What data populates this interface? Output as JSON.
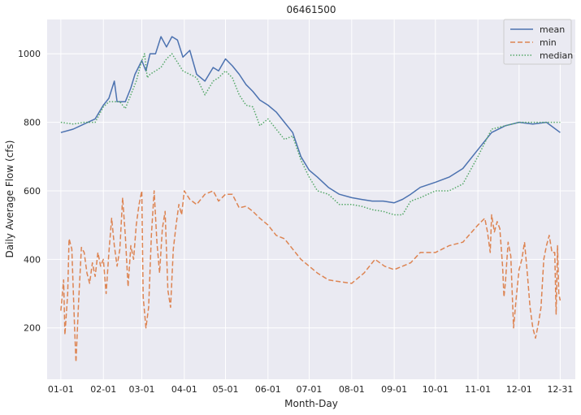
{
  "chart_data": {
    "type": "line",
    "title": "06461500",
    "xlabel": "Month-Day",
    "ylabel": "Daily Average Flow (cfs)",
    "x_tick_labels": [
      "01-01",
      "02-01",
      "03-01",
      "04-01",
      "05-01",
      "06-01",
      "07-01",
      "08-01",
      "09-01",
      "10-01",
      "11-01",
      "12-01",
      "12-31"
    ],
    "x_tick_days": [
      1,
      32,
      60,
      91,
      121,
      152,
      182,
      213,
      244,
      274,
      305,
      335,
      365
    ],
    "xlim": [
      -9,
      376
    ],
    "y_ticks": [
      200,
      400,
      600,
      800,
      1000
    ],
    "ylim": [
      50,
      1100
    ],
    "grid": true,
    "legend": "top-right",
    "background_color": "#eaeaf2",
    "series": [
      {
        "name": "mean",
        "style": "solid",
        "color": "#4c72b0",
        "points": [
          [
            1,
            770
          ],
          [
            10,
            780
          ],
          [
            18,
            795
          ],
          [
            26,
            810
          ],
          [
            32,
            850
          ],
          [
            36,
            870
          ],
          [
            40,
            920
          ],
          [
            42,
            860
          ],
          [
            48,
            860
          ],
          [
            52,
            900
          ],
          [
            55,
            940
          ],
          [
            60,
            980
          ],
          [
            63,
            950
          ],
          [
            66,
            1000
          ],
          [
            70,
            1000
          ],
          [
            74,
            1050
          ],
          [
            78,
            1020
          ],
          [
            82,
            1050
          ],
          [
            86,
            1040
          ],
          [
            90,
            990
          ],
          [
            95,
            1010
          ],
          [
            100,
            940
          ],
          [
            106,
            920
          ],
          [
            112,
            960
          ],
          [
            116,
            950
          ],
          [
            121,
            985
          ],
          [
            126,
            965
          ],
          [
            131,
            940
          ],
          [
            136,
            910
          ],
          [
            141,
            890
          ],
          [
            146,
            865
          ],
          [
            152,
            850
          ],
          [
            158,
            830
          ],
          [
            164,
            800
          ],
          [
            170,
            770
          ],
          [
            176,
            700
          ],
          [
            182,
            660
          ],
          [
            188,
            640
          ],
          [
            196,
            610
          ],
          [
            204,
            590
          ],
          [
            213,
            580
          ],
          [
            220,
            575
          ],
          [
            228,
            570
          ],
          [
            236,
            570
          ],
          [
            244,
            565
          ],
          [
            250,
            575
          ],
          [
            256,
            590
          ],
          [
            263,
            610
          ],
          [
            274,
            625
          ],
          [
            284,
            640
          ],
          [
            294,
            665
          ],
          [
            305,
            720
          ],
          [
            315,
            770
          ],
          [
            325,
            790
          ],
          [
            335,
            800
          ],
          [
            345,
            795
          ],
          [
            355,
            800
          ],
          [
            365,
            770
          ]
        ]
      },
      {
        "name": "min",
        "style": "dashed",
        "color": "#dd8452",
        "points": [
          [
            1,
            250
          ],
          [
            3,
            340
          ],
          [
            4,
            180
          ],
          [
            6,
            300
          ],
          [
            7,
            460
          ],
          [
            9,
            430
          ],
          [
            11,
            200
          ],
          [
            12,
            100
          ],
          [
            14,
            280
          ],
          [
            16,
            435
          ],
          [
            18,
            420
          ],
          [
            20,
            360
          ],
          [
            22,
            330
          ],
          [
            24,
            390
          ],
          [
            26,
            350
          ],
          [
            28,
            420
          ],
          [
            30,
            380
          ],
          [
            32,
            400
          ],
          [
            34,
            300
          ],
          [
            36,
            420
          ],
          [
            38,
            520
          ],
          [
            40,
            440
          ],
          [
            42,
            380
          ],
          [
            44,
            430
          ],
          [
            46,
            580
          ],
          [
            48,
            470
          ],
          [
            50,
            320
          ],
          [
            52,
            440
          ],
          [
            54,
            400
          ],
          [
            56,
            500
          ],
          [
            58,
            560
          ],
          [
            60,
            600
          ],
          [
            61,
            290
          ],
          [
            63,
            200
          ],
          [
            65,
            260
          ],
          [
            67,
            470
          ],
          [
            69,
            600
          ],
          [
            71,
            450
          ],
          [
            73,
            360
          ],
          [
            75,
            490
          ],
          [
            77,
            540
          ],
          [
            79,
            310
          ],
          [
            81,
            260
          ],
          [
            83,
            430
          ],
          [
            85,
            500
          ],
          [
            87,
            560
          ],
          [
            89,
            530
          ],
          [
            91,
            600
          ],
          [
            95,
            575
          ],
          [
            100,
            560
          ],
          [
            106,
            590
          ],
          [
            112,
            600
          ],
          [
            116,
            570
          ],
          [
            121,
            590
          ],
          [
            126,
            590
          ],
          [
            131,
            550
          ],
          [
            136,
            555
          ],
          [
            141,
            540
          ],
          [
            146,
            520
          ],
          [
            152,
            500
          ],
          [
            158,
            470
          ],
          [
            164,
            460
          ],
          [
            170,
            430
          ],
          [
            176,
            400
          ],
          [
            182,
            380
          ],
          [
            188,
            360
          ],
          [
            196,
            340
          ],
          [
            204,
            335
          ],
          [
            213,
            330
          ],
          [
            222,
            360
          ],
          [
            230,
            400
          ],
          [
            237,
            380
          ],
          [
            244,
            370
          ],
          [
            250,
            380
          ],
          [
            256,
            390
          ],
          [
            263,
            420
          ],
          [
            274,
            420
          ],
          [
            284,
            440
          ],
          [
            294,
            450
          ],
          [
            305,
            500
          ],
          [
            310,
            520
          ],
          [
            312,
            480
          ],
          [
            314,
            420
          ],
          [
            315,
            530
          ],
          [
            317,
            480
          ],
          [
            319,
            510
          ],
          [
            321,
            490
          ],
          [
            323,
            380
          ],
          [
            324,
            290
          ],
          [
            325,
            330
          ],
          [
            327,
            450
          ],
          [
            329,
            410
          ],
          [
            331,
            200
          ],
          [
            333,
            290
          ],
          [
            335,
            370
          ],
          [
            337,
            400
          ],
          [
            339,
            450
          ],
          [
            341,
            360
          ],
          [
            343,
            260
          ],
          [
            345,
            200
          ],
          [
            347,
            170
          ],
          [
            349,
            210
          ],
          [
            351,
            260
          ],
          [
            353,
            400
          ],
          [
            355,
            440
          ],
          [
            357,
            470
          ],
          [
            359,
            420
          ],
          [
            361,
            420
          ],
          [
            362,
            240
          ],
          [
            363,
            440
          ],
          [
            364,
            300
          ],
          [
            365,
            280
          ]
        ]
      },
      {
        "name": "median",
        "style": "dotted",
        "color": "#55a868",
        "points": [
          [
            1,
            800
          ],
          [
            10,
            795
          ],
          [
            18,
            800
          ],
          [
            26,
            800
          ],
          [
            32,
            845
          ],
          [
            36,
            860
          ],
          [
            40,
            860
          ],
          [
            44,
            860
          ],
          [
            48,
            840
          ],
          [
            52,
            880
          ],
          [
            56,
            920
          ],
          [
            60,
            980
          ],
          [
            62,
            1000
          ],
          [
            64,
            930
          ],
          [
            66,
            940
          ],
          [
            70,
            950
          ],
          [
            74,
            960
          ],
          [
            78,
            985
          ],
          [
            82,
            1000
          ],
          [
            86,
            975
          ],
          [
            90,
            950
          ],
          [
            95,
            940
          ],
          [
            100,
            930
          ],
          [
            106,
            880
          ],
          [
            112,
            920
          ],
          [
            116,
            930
          ],
          [
            121,
            950
          ],
          [
            126,
            930
          ],
          [
            131,
            880
          ],
          [
            136,
            850
          ],
          [
            141,
            845
          ],
          [
            146,
            790
          ],
          [
            152,
            810
          ],
          [
            158,
            780
          ],
          [
            164,
            750
          ],
          [
            170,
            760
          ],
          [
            176,
            690
          ],
          [
            182,
            640
          ],
          [
            188,
            600
          ],
          [
            196,
            590
          ],
          [
            204,
            560
          ],
          [
            213,
            560
          ],
          [
            220,
            555
          ],
          [
            228,
            545
          ],
          [
            236,
            540
          ],
          [
            244,
            530
          ],
          [
            250,
            530
          ],
          [
            256,
            570
          ],
          [
            263,
            580
          ],
          [
            274,
            600
          ],
          [
            284,
            600
          ],
          [
            294,
            620
          ],
          [
            305,
            700
          ],
          [
            315,
            780
          ],
          [
            325,
            790
          ],
          [
            335,
            800
          ],
          [
            345,
            800
          ],
          [
            355,
            800
          ],
          [
            365,
            800
          ]
        ]
      }
    ]
  }
}
